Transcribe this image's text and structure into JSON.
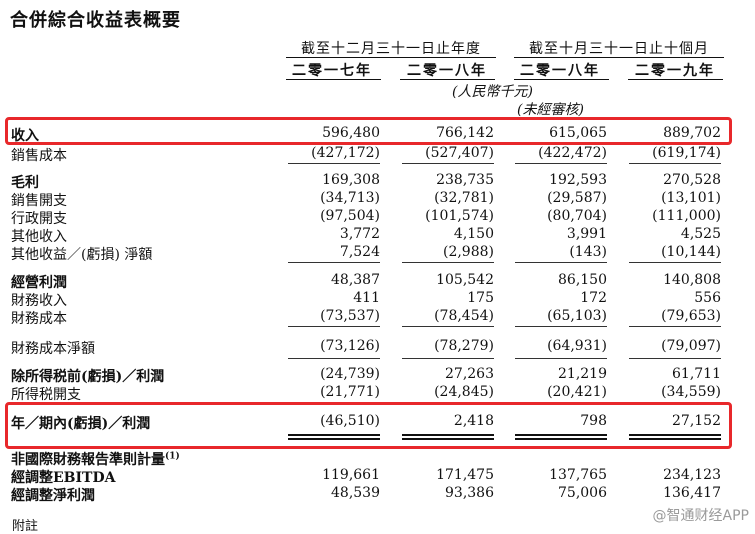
{
  "title": "合併綜合收益表概要",
  "periods": [
    {
      "label": "截至十二月三十一日止年度",
      "years": [
        "二零一七年",
        "二零一八年"
      ]
    },
    {
      "label": "截至十月三十一日止十個月",
      "years": [
        "二零一八年",
        "二零一九年"
      ]
    }
  ],
  "unit": "(人民幣千元)",
  "unaudited": "(未經審核)",
  "rows": [
    {
      "label": "收入",
      "values": [
        "596,480",
        "766,142",
        "615,065",
        "889,702"
      ]
    },
    {
      "label": "銷售成本",
      "values": [
        "(427,172)",
        "(527,407)",
        "(422,472)",
        "(619,174)"
      ]
    },
    {
      "label": "毛利",
      "values": [
        "169,308",
        "238,735",
        "192,593",
        "270,528"
      ]
    },
    {
      "label": "銷售開支",
      "values": [
        "(34,713)",
        "(32,781)",
        "(29,587)",
        "(13,101)"
      ]
    },
    {
      "label": "行政開支",
      "values": [
        "(97,504)",
        "(101,574)",
        "(80,704)",
        "(111,000)"
      ]
    },
    {
      "label": "其他收入",
      "values": [
        "3,772",
        "4,150",
        "3,991",
        "4,525"
      ]
    },
    {
      "label": "其他收益／(虧損) 淨額",
      "values": [
        "7,524",
        "(2,988)",
        "(143)",
        "(10,144)"
      ]
    },
    {
      "label": "經營利潤",
      "values": [
        "48,387",
        "105,542",
        "86,150",
        "140,808"
      ]
    },
    {
      "label": "財務收入",
      "values": [
        "411",
        "175",
        "172",
        "556"
      ]
    },
    {
      "label": "財務成本",
      "values": [
        "(73,537)",
        "(78,454)",
        "(65,103)",
        "(79,653)"
      ]
    },
    {
      "label": "財務成本淨額",
      "values": [
        "(73,126)",
        "(78,279)",
        "(64,931)",
        "(79,097)"
      ]
    },
    {
      "label": "除所得税前(虧損)／利潤",
      "values": [
        "(24,739)",
        "27,263",
        "21,219",
        "61,711"
      ]
    },
    {
      "label": "所得税開支",
      "values": [
        "(21,771)",
        "(24,845)",
        "(20,421)",
        "(34,559)"
      ]
    },
    {
      "label": "年／期內(虧損)／利潤",
      "values": [
        "(46,510)",
        "2,418",
        "798",
        "27,152"
      ]
    },
    {
      "label": "非國際財務報告準則計量",
      "footnote": "(1)",
      "values": [
        "",
        "",
        "",
        ""
      ]
    },
    {
      "label": "經調整EBITDA",
      "values": [
        "119,661",
        "171,475",
        "137,765",
        "234,123"
      ]
    },
    {
      "label": "經調整淨利潤",
      "values": [
        "48,539",
        "93,386",
        "75,006",
        "136,417"
      ]
    }
  ],
  "watermark": "@智通财经APP",
  "footer_note": "附註"
}
